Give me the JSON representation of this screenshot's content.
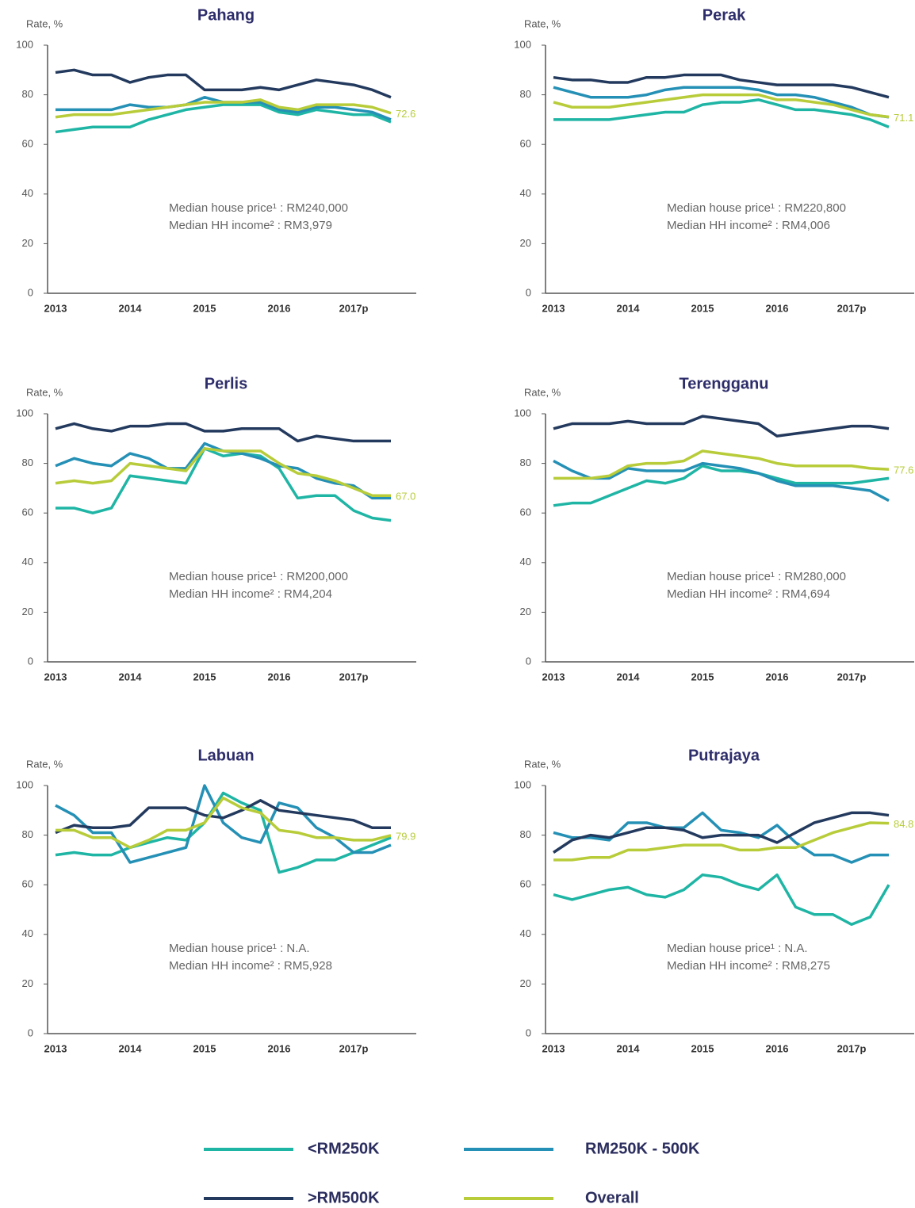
{
  "chart_data": [
    {
      "type": "line",
      "title": "Pahang",
      "ylabel": "Rate, %",
      "categories": [
        "2013",
        null,
        null,
        null,
        "2014",
        null,
        null,
        null,
        "2015",
        null,
        null,
        null,
        "2016",
        null,
        null,
        null,
        "2017p",
        null,
        null
      ],
      "ylim": [
        0,
        100
      ],
      "yticks": [
        0,
        20,
        40,
        60,
        80,
        100
      ],
      "annotations": [
        "Median house price¹ : RM240,000",
        "Median HH income² : RM3,979"
      ],
      "series": [
        {
          "name": "<RM250K",
          "color": "#1fb5a5",
          "values": [
            65,
            66,
            67,
            67,
            67,
            70,
            72,
            74,
            75,
            76,
            76,
            76,
            73,
            72,
            74,
            73,
            72,
            72,
            69
          ]
        },
        {
          "name": "RM250K - 500K",
          "color": "#2590b5",
          "values": [
            74,
            74,
            74,
            74,
            76,
            75,
            75,
            76,
            79,
            77,
            77,
            77,
            74,
            73,
            75,
            75,
            74,
            73,
            70
          ]
        },
        {
          "name": ">RM500K",
          "color": "#233a5e",
          "values": [
            89,
            90,
            88,
            88,
            85,
            87,
            88,
            88,
            82,
            82,
            82,
            83,
            82,
            84,
            86,
            85,
            84,
            82,
            79
          ]
        },
        {
          "name": "Overall",
          "color": "#b8cc3a",
          "values": [
            71,
            72,
            72,
            72,
            73,
            74,
            75,
            76,
            77,
            77,
            77,
            78,
            75,
            74,
            76,
            76,
            76,
            75,
            72.6
          ],
          "value_labels": [
            null,
            null,
            null,
            null,
            null,
            null,
            null,
            null,
            null,
            null,
            null,
            null,
            null,
            null,
            null,
            null,
            null,
            null,
            "72.6"
          ]
        }
      ]
    },
    {
      "type": "line",
      "title": "Perak",
      "ylabel": "Rate, %",
      "categories": [
        "2013",
        null,
        null,
        null,
        "2014",
        null,
        null,
        null,
        "2015",
        null,
        null,
        null,
        "2016",
        null,
        null,
        null,
        "2017p",
        null,
        null
      ],
      "ylim": [
        0,
        100
      ],
      "yticks": [
        0,
        20,
        40,
        60,
        80,
        100
      ],
      "annotations": [
        "Median house price¹ : RM220,800",
        "Median HH income² : RM4,006"
      ],
      "series": [
        {
          "name": "<RM250K",
          "color": "#1fb5a5",
          "values": [
            70,
            70,
            70,
            70,
            71,
            72,
            73,
            73,
            76,
            77,
            77,
            78,
            76,
            74,
            74,
            73,
            72,
            70,
            67
          ]
        },
        {
          "name": "RM250K - 500K",
          "color": "#2590b5",
          "values": [
            83,
            81,
            79,
            79,
            79,
            80,
            82,
            83,
            83,
            83,
            83,
            82,
            80,
            80,
            79,
            77,
            75,
            72,
            71
          ]
        },
        {
          "name": ">RM500K",
          "color": "#233a5e",
          "values": [
            87,
            86,
            86,
            85,
            85,
            87,
            87,
            88,
            88,
            88,
            86,
            85,
            84,
            84,
            84,
            84,
            83,
            81,
            79
          ]
        },
        {
          "name": "Overall",
          "color": "#b8cc3a",
          "values": [
            77,
            75,
            75,
            75,
            76,
            77,
            78,
            79,
            80,
            80,
            80,
            80,
            78,
            78,
            77,
            76,
            74,
            72,
            71.1
          ],
          "value_labels": [
            null,
            null,
            null,
            null,
            null,
            null,
            null,
            null,
            null,
            null,
            null,
            null,
            null,
            null,
            null,
            null,
            null,
            null,
            "71.1"
          ]
        }
      ]
    },
    {
      "type": "line",
      "title": "Perlis",
      "ylabel": "Rate, %",
      "categories": [
        "2013",
        null,
        null,
        null,
        "2014",
        null,
        null,
        null,
        "2015",
        null,
        null,
        null,
        "2016",
        null,
        null,
        null,
        "2017p",
        null,
        null
      ],
      "ylim": [
        0,
        100
      ],
      "yticks": [
        0,
        20,
        40,
        60,
        80,
        100
      ],
      "annotations": [
        "Median house price¹ : RM200,000",
        "Median HH income² : RM4,204"
      ],
      "series": [
        {
          "name": "<RM250K",
          "color": "#1fb5a5",
          "values": [
            62,
            62,
            60,
            62,
            75,
            74,
            73,
            72,
            86,
            83,
            84,
            83,
            78,
            66,
            67,
            67,
            61,
            58,
            57
          ]
        },
        {
          "name": "RM250K - 500K",
          "color": "#2590b5",
          "values": [
            79,
            82,
            80,
            79,
            84,
            82,
            78,
            78,
            88,
            85,
            84,
            82,
            79,
            78,
            74,
            72,
            71,
            66,
            66
          ]
        },
        {
          "name": ">RM500K",
          "color": "#233a5e",
          "values": [
            94,
            96,
            94,
            93,
            95,
            95,
            96,
            96,
            93,
            93,
            94,
            94,
            94,
            89,
            91,
            90,
            89,
            89,
            89
          ]
        },
        {
          "name": "Overall",
          "color": "#b8cc3a",
          "values": [
            72,
            73,
            72,
            73,
            80,
            79,
            78,
            77,
            86,
            85,
            85,
            85,
            80,
            76,
            75,
            73,
            70,
            67,
            67.0
          ],
          "value_labels": [
            null,
            null,
            null,
            null,
            null,
            null,
            null,
            null,
            null,
            null,
            null,
            null,
            null,
            null,
            null,
            null,
            null,
            null,
            "67.0"
          ]
        }
      ]
    },
    {
      "type": "line",
      "title": "Terengganu",
      "ylabel": "Rate, %",
      "categories": [
        "2013",
        null,
        null,
        null,
        "2014",
        null,
        null,
        null,
        "2015",
        null,
        null,
        null,
        "2016",
        null,
        null,
        null,
        "2017p",
        null,
        null
      ],
      "ylim": [
        0,
        100
      ],
      "yticks": [
        0,
        20,
        40,
        60,
        80,
        100
      ],
      "annotations": [
        "Median house price¹ : RM280,000",
        "Median HH income² : RM4,694"
      ],
      "series": [
        {
          "name": "<RM250K",
          "color": "#1fb5a5",
          "values": [
            63,
            64,
            64,
            67,
            70,
            73,
            72,
            74,
            79,
            77,
            77,
            76,
            74,
            72,
            72,
            72,
            72,
            73,
            74
          ]
        },
        {
          "name": "RM250K - 500K",
          "color": "#2590b5",
          "values": [
            81,
            77,
            74,
            74,
            78,
            77,
            77,
            77,
            80,
            79,
            78,
            76,
            73,
            71,
            71,
            71,
            70,
            69,
            65
          ]
        },
        {
          "name": ">RM500K",
          "color": "#233a5e",
          "values": [
            94,
            96,
            96,
            96,
            97,
            96,
            96,
            96,
            99,
            98,
            97,
            96,
            91,
            92,
            93,
            94,
            95,
            95,
            94
          ]
        },
        {
          "name": "Overall",
          "color": "#b8cc3a",
          "values": [
            74,
            74,
            74,
            75,
            79,
            80,
            80,
            81,
            85,
            84,
            83,
            82,
            80,
            79,
            79,
            79,
            79,
            78,
            77.6
          ],
          "value_labels": [
            null,
            null,
            null,
            null,
            null,
            null,
            null,
            null,
            null,
            null,
            null,
            null,
            null,
            null,
            null,
            null,
            null,
            null,
            "77.6"
          ]
        }
      ]
    },
    {
      "type": "line",
      "title": "Labuan",
      "ylabel": "Rate, %",
      "categories": [
        "2013",
        null,
        null,
        null,
        "2014",
        null,
        null,
        null,
        "2015",
        null,
        null,
        null,
        "2016",
        null,
        null,
        null,
        "2017p",
        null,
        null
      ],
      "ylim": [
        0,
        100
      ],
      "yticks": [
        0,
        20,
        40,
        60,
        80,
        100
      ],
      "annotations": [
        "Median house price¹ : N.A.",
        "Median HH income² : RM5,928"
      ],
      "series": [
        {
          "name": "<RM250K",
          "color": "#1fb5a5",
          "values": [
            72,
            73,
            72,
            72,
            75,
            77,
            79,
            78,
            85,
            97,
            93,
            90,
            65,
            67,
            70,
            70,
            73,
            76,
            79
          ]
        },
        {
          "name": "RM250K - 500K",
          "color": "#2590b5",
          "values": [
            92,
            88,
            81,
            81,
            69,
            71,
            73,
            75,
            100,
            85,
            79,
            77,
            93,
            91,
            83,
            79,
            73,
            73,
            76
          ]
        },
        {
          "name": ">RM500K",
          "color": "#233a5e",
          "values": [
            81,
            84,
            83,
            83,
            84,
            91,
            91,
            91,
            88,
            87,
            90,
            94,
            90,
            89,
            88,
            87,
            86,
            83,
            83
          ]
        },
        {
          "name": "Overall",
          "color": "#b8cc3a",
          "values": [
            82,
            82,
            79,
            79,
            75,
            78,
            82,
            82,
            85,
            95,
            91,
            89,
            82,
            81,
            79,
            79,
            78,
            78,
            79.9
          ],
          "value_labels": [
            null,
            null,
            null,
            null,
            null,
            null,
            null,
            null,
            null,
            null,
            null,
            null,
            null,
            null,
            null,
            null,
            null,
            null,
            "79.9"
          ]
        }
      ]
    },
    {
      "type": "line",
      "title": "Putrajaya",
      "ylabel": "Rate, %",
      "categories": [
        "2013",
        null,
        null,
        null,
        "2014",
        null,
        null,
        null,
        "2015",
        null,
        null,
        null,
        "2016",
        null,
        null,
        null,
        "2017p",
        null,
        null
      ],
      "ylim": [
        0,
        100
      ],
      "yticks": [
        0,
        20,
        40,
        60,
        80,
        100
      ],
      "annotations": [
        "Median house price¹ : N.A.",
        "Median HH income² : RM8,275"
      ],
      "series": [
        {
          "name": "<RM250K",
          "color": "#1fb5a5",
          "values": [
            56,
            54,
            56,
            58,
            59,
            56,
            55,
            58,
            64,
            63,
            60,
            58,
            64,
            51,
            48,
            48,
            44,
            47,
            60
          ]
        },
        {
          "name": "RM250K - 500K",
          "color": "#2590b5",
          "values": [
            81,
            79,
            79,
            78,
            85,
            85,
            83,
            83,
            89,
            82,
            81,
            79,
            84,
            77,
            72,
            72,
            69,
            72,
            72
          ]
        },
        {
          "name": ">RM500K",
          "color": "#233a5e",
          "values": [
            73,
            78,
            80,
            79,
            81,
            83,
            83,
            82,
            79,
            80,
            80,
            80,
            77,
            81,
            85,
            87,
            89,
            89,
            88
          ]
        },
        {
          "name": "Overall",
          "color": "#b8cc3a",
          "values": [
            70,
            70,
            71,
            71,
            74,
            74,
            75,
            76,
            76,
            76,
            74,
            74,
            75,
            75,
            78,
            81,
            83,
            85,
            84.8
          ],
          "value_labels": [
            null,
            null,
            null,
            null,
            null,
            null,
            null,
            null,
            null,
            null,
            null,
            null,
            null,
            null,
            null,
            null,
            null,
            null,
            "84.8"
          ]
        }
      ]
    }
  ]
}
